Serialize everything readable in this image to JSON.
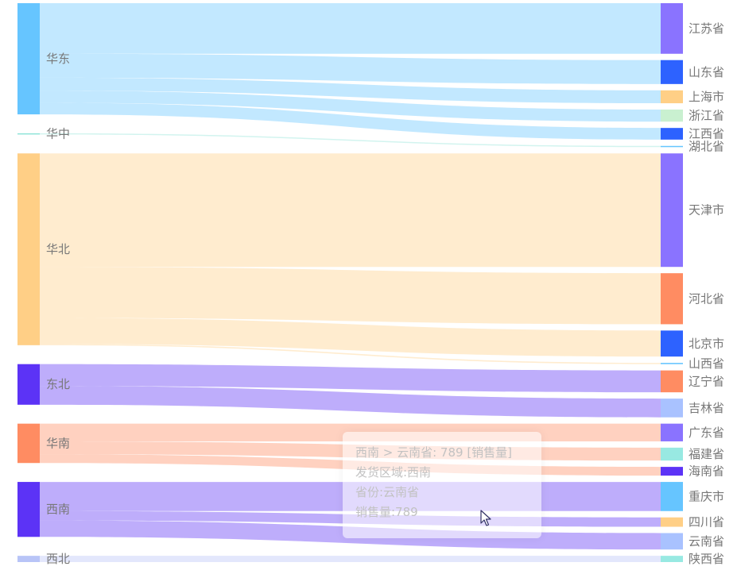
{
  "chart_data": {
    "type": "sankey",
    "colors": [
      "#66c5ff",
      "#8fe4d8",
      "#ffcf86",
      "#5c33f6",
      "#ff8c62",
      "#5c33f6",
      "#b8c4f7"
    ],
    "target_colors": {
      "江苏省": "#8a73ff",
      "山东省": "#2d62ff",
      "上海市": "#ffcf86",
      "浙江省": "#c9f0d0",
      "江西省": "#2d62ff",
      "湖北省": "#66c5ff",
      "天津市": "#8a73ff",
      "河北省": "#ff8c62",
      "北京市": "#2d62ff",
      "山西省": "#66c5ff",
      "辽宁省": "#ff8c62",
      "吉林省": "#a9c2ff",
      "广东省": "#8a73ff",
      "福建省": "#98e9e2",
      "海南省": "#5c33f6",
      "重庆市": "#66c5ff",
      "四川省": "#ffcf86",
      "云南省": "#a9c2ff",
      "陕西省": "#98e9e2"
    },
    "sources": [
      "华东",
      "华中",
      "华北",
      "东北",
      "华南",
      "西南",
      "西北"
    ],
    "targets": [
      "江苏省",
      "山东省",
      "上海市",
      "浙江省",
      "江西省",
      "湖北省",
      "天津市",
      "河北省",
      "北京市",
      "山西省",
      "辽宁省",
      "吉林省",
      "广东省",
      "福建省",
      "海南省",
      "重庆市",
      "四川省",
      "云南省",
      "陕西省"
    ],
    "links": [
      {
        "source": "华东",
        "target": "江苏省",
        "value": 2430
      },
      {
        "source": "华东",
        "target": "山东省",
        "value": 1150
      },
      {
        "source": "华东",
        "target": "上海市",
        "value": 620
      },
      {
        "source": "华东",
        "target": "浙江省",
        "value": 580
      },
      {
        "source": "华东",
        "target": "江西省",
        "value": 560
      },
      {
        "source": "华中",
        "target": "湖北省",
        "value": 20
      },
      {
        "source": "华北",
        "target": "天津市",
        "value": 5450
      },
      {
        "source": "华北",
        "target": "河北省",
        "value": 2450
      },
      {
        "source": "华北",
        "target": "北京市",
        "value": 1250
      },
      {
        "source": "华北",
        "target": "山西省",
        "value": 60
      },
      {
        "source": "东北",
        "target": "辽宁省",
        "value": 1050
      },
      {
        "source": "东北",
        "target": "吉林省",
        "value": 900
      },
      {
        "source": "华南",
        "target": "广东省",
        "value": 850
      },
      {
        "source": "华南",
        "target": "福建省",
        "value": 620
      },
      {
        "source": "华南",
        "target": "海南省",
        "value": 420
      },
      {
        "source": "西南",
        "target": "重庆市",
        "value": 1400
      },
      {
        "source": "西南",
        "target": "四川省",
        "value": 450
      },
      {
        "source": "西南",
        "target": "云南省",
        "value": 789
      },
      {
        "source": "西北",
        "target": "陕西省",
        "value": 300
      }
    ]
  },
  "tooltip": {
    "line1": "西南 > 云南省: 789 [销售量]",
    "line2": "发货区域:西南",
    "line3": "省份:云南省",
    "line4": "销售量:789"
  }
}
